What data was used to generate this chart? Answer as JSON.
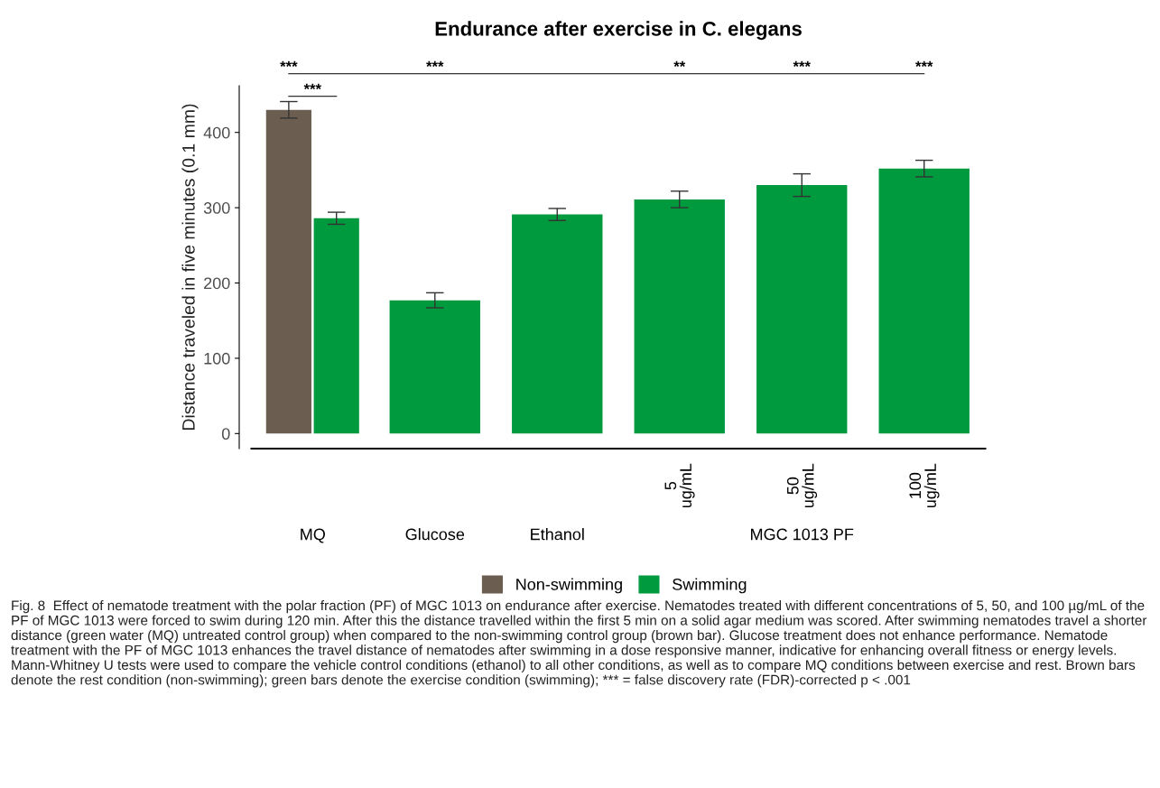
{
  "chart_data": {
    "type": "bar",
    "title": "Endurance after exercise in C. elegans",
    "ylabel": "Distance traveled in five minutes (0.1 mm)",
    "categories": [
      "MQ",
      "Glucose",
      "Ethanol",
      "5\nug/mL",
      "50\nug/mL",
      "100\nug/mL"
    ],
    "series": [
      {
        "name": "Non-swimming",
        "color": "#6b5d4f",
        "values": [
          430,
          null,
          null,
          null,
          null,
          null
        ],
        "errors": [
          11,
          null,
          null,
          null,
          null,
          null
        ]
      },
      {
        "name": "Swimming",
        "color": "#009a3e",
        "values": [
          286,
          177,
          291,
          311,
          330,
          352
        ],
        "errors": [
          8,
          10,
          8,
          11,
          15,
          11
        ]
      }
    ],
    "ylim": [
      -20,
      462
    ],
    "yticks": [
      0,
      100,
      200,
      300,
      400
    ],
    "grid": false,
    "legend": "bottom",
    "annotations": [
      "***",
      "***",
      "**",
      "***",
      "***",
      "***",
      "MGC 1013 PF",
      "Fig. 8  Effect of nematode treatment with the polar fraction (PF) of MGC 1013 on endurance after exercise. Nematodes treated with different concentrations of 5, 50, and 100 µg/mL of the PF of MGC 1013 were forced to swim during 120 min. After this the distance travelled within the first 5 min on a solid agar medium was scored. After swimming nematodes travel a shorter distance (green water (MQ) untreated control group) when compared to the non-swimming control group (brown bar). Glucose treatment does not enhance performance. Nematode treatment with the PF of MGC 1013 enhances the travel distance of nematodes after swimming in a dose responsive manner, indicative for enhancing overall fitness or energy levels. Mann-Whitney U tests were used to compare the vehicle control conditions (ethanol) to all other conditions, as well as to compare MQ conditions between exercise and rest. Brown bars denote the rest condition (non-swimming); green bars denote the exercise condition (swimming); *** = false discovery rate (FDR)-corrected p < .001"
    ]
  }
}
